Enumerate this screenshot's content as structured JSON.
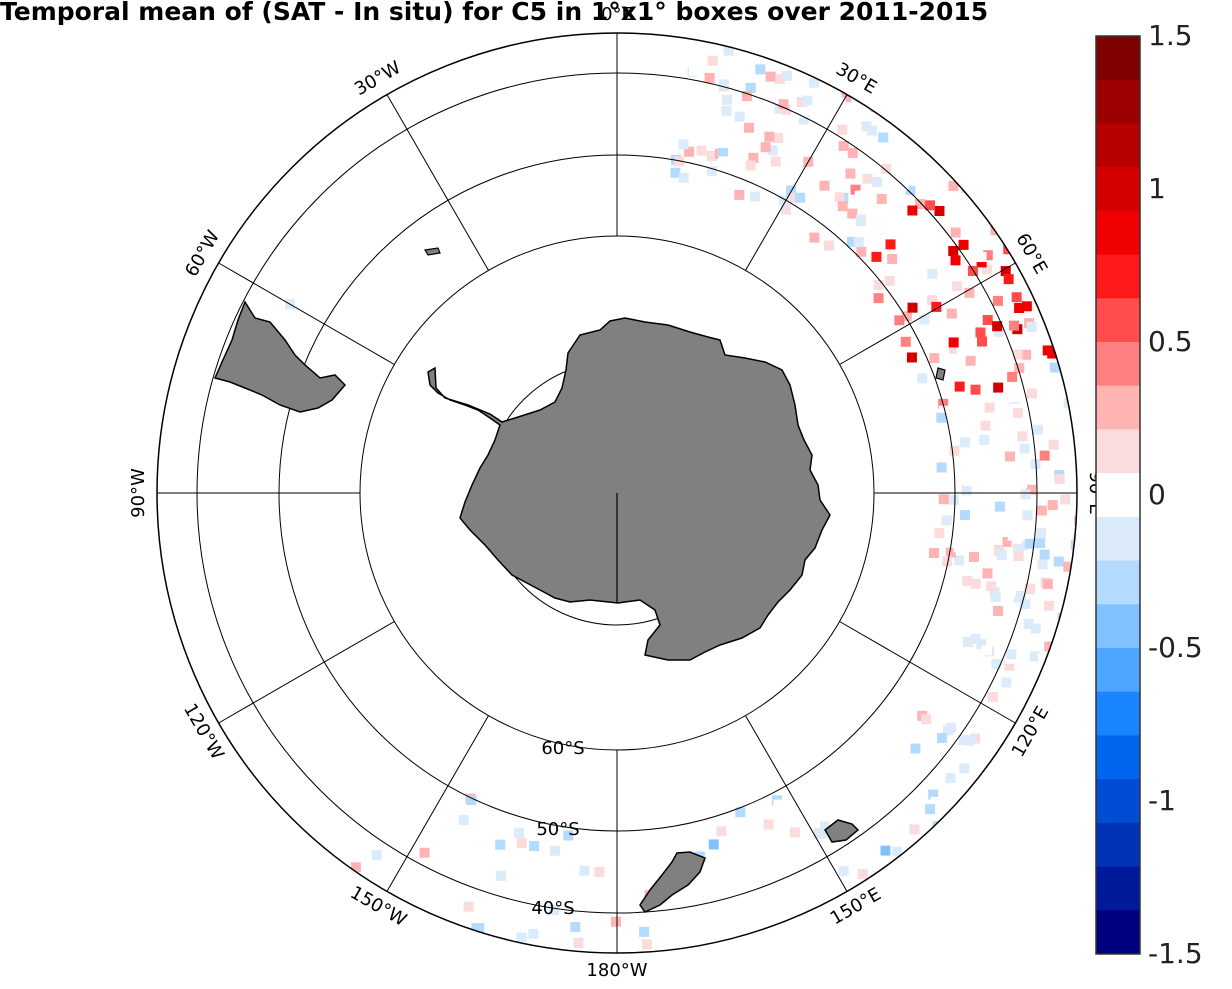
{
  "title": "Temporal mean of (SAT - In situ) for C5 in 1°x1° boxes over 2011-2015",
  "longitude_labels": [
    "0°E",
    "30°E",
    "60°E",
    "90°E",
    "120°E",
    "150°E",
    "180°W",
    "150°W",
    "120°W",
    "90°W",
    "60°W",
    "30°W"
  ],
  "latitude_labels": [
    "60°S",
    "50°S",
    "40°S"
  ],
  "colorbar": {
    "min": -1.5,
    "max": 1.5,
    "ticks": [
      "1.5",
      "1",
      "0.5",
      "0",
      "-0.5",
      "-1",
      "-1.5"
    ],
    "colormap": [
      "#00007f",
      "#001a9c",
      "#0033b8",
      "#004dd4",
      "#0066f0",
      "#1a85ff",
      "#4da6ff",
      "#80c2ff",
      "#b3dbff",
      "#dcebfa",
      "#ffffff",
      "#fadcdc",
      "#ffb3b3",
      "#ff8080",
      "#ff4d4d",
      "#ff1a1a",
      "#f00000",
      "#d40000",
      "#b80000",
      "#9c0000",
      "#7f0000"
    ]
  },
  "colors": {
    "land": "#808080",
    "land_outline": "#000000",
    "grid": "#000000",
    "background": "#ffffff"
  }
}
